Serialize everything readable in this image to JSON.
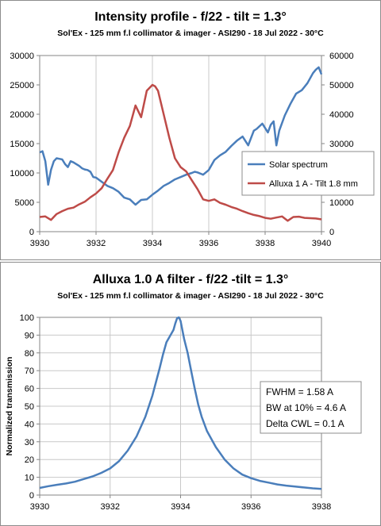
{
  "chart_data": [
    {
      "type": "line",
      "title": "Intensity profile - f/22 - tilt = 1.3°",
      "subtitle": "Sol'Ex - 125 mm f.l collimator & imager - ASI290 - 18 Jul 2022 - 30°C",
      "xlim": [
        3930,
        3940
      ],
      "ylim": [
        0,
        30000
      ],
      "y2lim": [
        0,
        60000
      ],
      "x_ticks": [
        "3930",
        "3932",
        "3934",
        "3936",
        "3938",
        "3940"
      ],
      "y_ticks": [
        "0",
        "5000",
        "10000",
        "15000",
        "20000",
        "25000",
        "30000"
      ],
      "y2_ticks": [
        "0",
        "10000",
        "20000",
        "30000",
        "40000",
        "50000",
        "60000"
      ],
      "grid": "vertical",
      "legend": "right",
      "series": [
        {
          "name": "Solar spectrum",
          "axis": "left",
          "color": "#4a7ebb",
          "x": [
            3930.0,
            3930.1,
            3930.2,
            3930.3,
            3930.4,
            3930.5,
            3930.6,
            3930.7,
            3930.8,
            3930.9,
            3931.0,
            3931.1,
            3931.2,
            3931.3,
            3931.4,
            3931.5,
            3931.6,
            3931.7,
            3931.8,
            3931.9,
            3932.0,
            3932.2,
            3932.4,
            3932.6,
            3932.8,
            3933.0,
            3933.2,
            3933.4,
            3933.6,
            3933.8,
            3934.0,
            3934.2,
            3934.4,
            3934.6,
            3934.8,
            3935.0,
            3935.2,
            3935.4,
            3935.5,
            3935.6,
            3935.8,
            3936.0,
            3936.2,
            3936.4,
            3936.6,
            3936.8,
            3937.0,
            3937.2,
            3937.4,
            3937.6,
            3937.7,
            3937.9,
            3938.1,
            3938.2,
            3938.3,
            3938.4,
            3938.5,
            3938.7,
            3938.9,
            3939.1,
            3939.3,
            3939.5,
            3939.7,
            3939.8,
            3939.9,
            3940.0
          ],
          "values": [
            13500,
            13700,
            12000,
            8000,
            10500,
            12000,
            12500,
            12400,
            12300,
            11500,
            11000,
            12000,
            11800,
            11500,
            11200,
            10800,
            10600,
            10500,
            10200,
            9300,
            9200,
            8500,
            7800,
            7400,
            6800,
            5800,
            5500,
            4600,
            5400,
            5500,
            6300,
            7000,
            7800,
            8300,
            8900,
            9300,
            9700,
            10000,
            10200,
            10100,
            9700,
            10500,
            12200,
            13000,
            13600,
            14600,
            15500,
            16200,
            14700,
            17200,
            17500,
            18400,
            16900,
            18200,
            18800,
            14700,
            17200,
            19800,
            21800,
            23500,
            24100,
            25300,
            27000,
            27600,
            28000,
            26800
          ]
        },
        {
          "name": "Alluxa 1 A - Tilt 1.8 mm",
          "axis": "right",
          "color": "#be4b48",
          "x": [
            3930.0,
            3930.2,
            3930.4,
            3930.6,
            3930.8,
            3931.0,
            3931.2,
            3931.4,
            3931.6,
            3931.8,
            3932.0,
            3932.2,
            3932.4,
            3932.6,
            3932.8,
            3933.0,
            3933.2,
            3933.4,
            3933.6,
            3933.8,
            3934.0,
            3934.1,
            3934.2,
            3934.4,
            3934.6,
            3934.8,
            3935.0,
            3935.2,
            3935.4,
            3935.6,
            3935.8,
            3936.0,
            3936.2,
            3936.4,
            3936.6,
            3936.8,
            3937.0,
            3937.2,
            3937.4,
            3937.6,
            3937.8,
            3938.0,
            3938.2,
            3938.4,
            3938.6,
            3938.8,
            3939.0,
            3939.2,
            3939.4,
            3939.6,
            3939.8,
            3940.0
          ],
          "values": [
            5000,
            5200,
            4000,
            6000,
            7000,
            7800,
            8200,
            9300,
            10200,
            11700,
            13000,
            14800,
            18000,
            21000,
            27000,
            32000,
            36000,
            43000,
            39000,
            48000,
            50000,
            49500,
            48000,
            40000,
            32000,
            25000,
            22000,
            20500,
            17500,
            14500,
            11000,
            10500,
            11000,
            9800,
            9200,
            8400,
            7800,
            7000,
            6300,
            5700,
            5300,
            4700,
            4400,
            4800,
            5200,
            3700,
            5000,
            5100,
            4700,
            4600,
            4500,
            4200
          ]
        }
      ]
    },
    {
      "type": "line",
      "title": "Alluxa 1.0 A filter - f/22 -tilt = 1.3°",
      "subtitle": "Sol'Ex - 125 mm f.l collimator & imager - ASI290 - 18 Jul 2022 - 30°C",
      "ylabel": "Normalized transmission",
      "xlim": [
        3930,
        3938
      ],
      "ylim": [
        0,
        100
      ],
      "x_ticks": [
        "3930",
        "3932",
        "3934",
        "3936",
        "3938"
      ],
      "y_ticks": [
        "0",
        "10",
        "20",
        "30",
        "40",
        "50",
        "60",
        "70",
        "80",
        "90",
        "100"
      ],
      "grid": "both",
      "annotation": [
        "FWHM = 1.58 A",
        "BW at 10% = 4.6 A",
        "Delta CWL = 0.1 A"
      ],
      "series": [
        {
          "color": "#4a7ebb",
          "x": [
            3930.0,
            3930.25,
            3930.5,
            3930.75,
            3931.0,
            3931.25,
            3931.5,
            3931.75,
            3932.0,
            3932.25,
            3932.5,
            3932.75,
            3933.0,
            3933.2,
            3933.4,
            3933.5,
            3933.6,
            3933.7,
            3933.8,
            3933.85,
            3933.9,
            3933.95,
            3934.0,
            3934.05,
            3934.1,
            3934.2,
            3934.3,
            3934.4,
            3934.5,
            3934.6,
            3934.75,
            3935.0,
            3935.25,
            3935.5,
            3935.75,
            3936.0,
            3936.25,
            3936.5,
            3936.75,
            3937.0,
            3937.25,
            3937.5,
            3937.75,
            3938.0
          ],
          "values": [
            4.0,
            5.0,
            5.8,
            6.5,
            7.5,
            9.0,
            10.5,
            12.5,
            15.0,
            19.0,
            25.0,
            33.0,
            44.0,
            56.0,
            71.0,
            79.0,
            86.0,
            89.5,
            93.0,
            96.5,
            99.5,
            100.0,
            98.0,
            93.0,
            88.0,
            80.0,
            70.0,
            60.0,
            51.0,
            44.0,
            36.0,
            27.0,
            20.0,
            15.0,
            11.5,
            9.5,
            8.0,
            7.0,
            6.0,
            5.3,
            4.8,
            4.3,
            3.8,
            3.5
          ]
        }
      ]
    }
  ]
}
